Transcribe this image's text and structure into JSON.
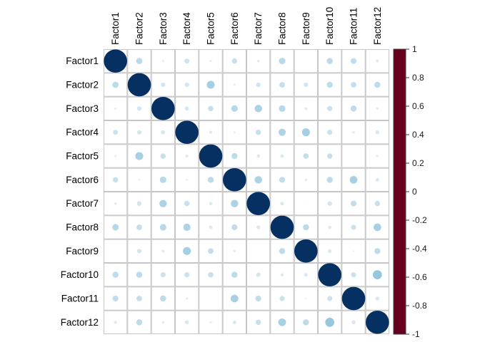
{
  "chart_data": {
    "type": "heatmap",
    "subtype": "correlation-matrix-circles",
    "title": "",
    "labels": [
      "Factor1",
      "Factor2",
      "Factor3",
      "Factor4",
      "Factor5",
      "Factor6",
      "Factor7",
      "Factor8",
      "Factor9",
      "Factor10",
      "Factor11",
      "Factor12"
    ],
    "matrix": [
      [
        1.0,
        0.27,
        0.1,
        0.21,
        0.1,
        0.23,
        0.11,
        0.28,
        0.03,
        0.26,
        0.25,
        0.13
      ],
      [
        0.27,
        1.0,
        0.19,
        0.19,
        0.34,
        0.09,
        0.2,
        0.24,
        0.19,
        0.26,
        0.24,
        0.26
      ],
      [
        0.1,
        0.19,
        1.0,
        0.18,
        0.23,
        0.28,
        0.32,
        0.28,
        0.13,
        0.22,
        0.26,
        0.11
      ],
      [
        0.21,
        0.19,
        0.18,
        1.0,
        0.13,
        0.09,
        0.23,
        0.31,
        0.34,
        0.22,
        0.11,
        0.17
      ],
      [
        0.1,
        0.34,
        0.23,
        0.13,
        1.0,
        0.26,
        0.14,
        0.15,
        0.24,
        0.23,
        0.04,
        0.1
      ],
      [
        0.23,
        0.09,
        0.28,
        0.09,
        0.26,
        1.0,
        0.32,
        0.25,
        0.11,
        0.26,
        0.33,
        0.16
      ],
      [
        0.11,
        0.2,
        0.32,
        0.23,
        0.14,
        0.32,
        1.0,
        0.16,
        0.04,
        0.19,
        0.25,
        0.23
      ],
      [
        0.28,
        0.24,
        0.28,
        0.31,
        0.15,
        0.25,
        0.16,
        1.0,
        0.26,
        0.14,
        0.22,
        0.33
      ],
      [
        0.03,
        0.19,
        0.13,
        0.34,
        0.24,
        0.11,
        0.04,
        0.26,
        1.0,
        0.16,
        0.07,
        0.26
      ],
      [
        0.26,
        0.26,
        0.22,
        0.22,
        0.23,
        0.26,
        0.19,
        0.14,
        0.16,
        1.0,
        0.22,
        0.39
      ],
      [
        0.25,
        0.24,
        0.26,
        0.11,
        0.04,
        0.33,
        0.25,
        0.22,
        0.07,
        0.22,
        1.0,
        0.17
      ],
      [
        0.13,
        0.26,
        0.11,
        0.17,
        0.1,
        0.16,
        0.23,
        0.33,
        0.26,
        0.39,
        0.17,
        1.0
      ]
    ],
    "value_range": [
      -1,
      1
    ],
    "legend": {
      "position": "right",
      "tick_labels": [
        "1",
        "0.8",
        "0.6",
        "0.4",
        "0.2",
        "0",
        "-0.2",
        "-0.4",
        "-0.6",
        "-0.8",
        "-1"
      ],
      "tick_values": [
        1,
        0.8,
        0.6,
        0.4,
        0.2,
        0,
        -0.2,
        -0.4,
        -0.6,
        -0.8,
        -1
      ]
    },
    "colormap": [
      {
        "value": -1.0,
        "color": "#67001F"
      },
      {
        "value": -0.8,
        "color": "#B2182B"
      },
      {
        "value": -0.6,
        "color": "#D6604D"
      },
      {
        "value": -0.4,
        "color": "#F4A582"
      },
      {
        "value": -0.2,
        "color": "#FDDBC7"
      },
      {
        "value": 0.0,
        "color": "#F7F7F7"
      },
      {
        "value": 0.2,
        "color": "#D1E5F0"
      },
      {
        "value": 0.4,
        "color": "#92C5DE"
      },
      {
        "value": 0.6,
        "color": "#4393C3"
      },
      {
        "value": 0.8,
        "color": "#2166AC"
      },
      {
        "value": 1.0,
        "color": "#053061"
      }
    ],
    "grid": true,
    "grid_color": "#c6c6c6",
    "background": "#ffffff",
    "label_color": "#000000",
    "legend_frame_color": "#404040"
  }
}
